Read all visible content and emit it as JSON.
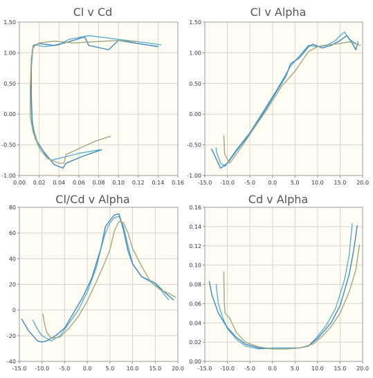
{
  "colors": {
    "background": "#fffdf3",
    "grid": "#d6d6cc",
    "series_colors": [
      "#5aaed0",
      "#3d87c2",
      "#9fa87e"
    ]
  },
  "chart_data": [
    {
      "type": "line",
      "title": "Cl v Cd",
      "xlabel": "",
      "ylabel": "",
      "xlim": [
        0.0,
        0.16
      ],
      "ylim": [
        -1.0,
        1.5
      ],
      "xticks": [
        "0.00",
        "0.02",
        "0.04",
        "0.06",
        "0.08",
        "0.10",
        "0.12",
        "0.14",
        "0.16"
      ],
      "yticks": [
        "-1.00",
        "-0.50",
        "0.00",
        "0.50",
        "1.00",
        "1.50"
      ],
      "grid": true,
      "series": [
        {
          "color": "#5aaed0",
          "points": [
            [
              0.081,
              -0.58
            ],
            [
              0.06,
              -0.64
            ],
            [
              0.045,
              -0.7
            ],
            [
              0.032,
              -0.75
            ],
            [
              0.022,
              -0.6
            ],
            [
              0.016,
              -0.4
            ],
            [
              0.013,
              -0.1
            ],
            [
              0.012,
              0.3
            ],
            [
              0.012,
              0.7
            ],
            [
              0.013,
              1.05
            ],
            [
              0.016,
              1.13
            ],
            [
              0.025,
              1.1
            ],
            [
              0.04,
              1.13
            ],
            [
              0.05,
              1.22
            ],
            [
              0.07,
              1.28
            ],
            [
              0.1,
              1.22
            ],
            [
              0.13,
              1.16
            ],
            [
              0.143,
              1.13
            ]
          ]
        },
        {
          "color": "#3d87c2",
          "points": [
            [
              0.083,
              -0.58
            ],
            [
              0.065,
              -0.68
            ],
            [
              0.047,
              -0.8
            ],
            [
              0.044,
              -0.88
            ],
            [
              0.035,
              -0.82
            ],
            [
              0.025,
              -0.62
            ],
            [
              0.018,
              -0.45
            ],
            [
              0.013,
              -0.2
            ],
            [
              0.012,
              0.2
            ],
            [
              0.012,
              0.8
            ],
            [
              0.014,
              1.12
            ],
            [
              0.02,
              1.15
            ],
            [
              0.035,
              1.12
            ],
            [
              0.05,
              1.18
            ],
            [
              0.066,
              1.26
            ],
            [
              0.07,
              1.12
            ],
            [
              0.09,
              1.05
            ],
            [
              0.1,
              1.2
            ],
            [
              0.14,
              1.1
            ]
          ]
        },
        {
          "color": "#9fa87e",
          "points": [
            [
              0.092,
              -0.36
            ],
            [
              0.075,
              -0.45
            ],
            [
              0.047,
              -0.66
            ],
            [
              0.045,
              -0.8
            ],
            [
              0.04,
              -0.8
            ],
            [
              0.028,
              -0.72
            ],
            [
              0.02,
              -0.55
            ],
            [
              0.014,
              -0.3
            ],
            [
              0.011,
              -0.05
            ],
            [
              0.011,
              0.4
            ],
            [
              0.012,
              0.9
            ],
            [
              0.014,
              1.1
            ],
            [
              0.02,
              1.16
            ],
            [
              0.035,
              1.19
            ],
            [
              0.055,
              1.16
            ],
            [
              0.075,
              1.18
            ],
            [
              0.1,
              1.2
            ],
            [
              0.12,
              1.18
            ]
          ]
        }
      ]
    },
    {
      "type": "line",
      "title": "Cl v Alpha",
      "xlabel": "",
      "ylabel": "",
      "xlim": [
        -15.0,
        20.0
      ],
      "ylim": [
        -1.0,
        1.5
      ],
      "xticks": [
        "-15.0",
        "-10.0",
        "-5.0",
        "0.0",
        "5.0",
        "10.0",
        "15.0",
        "20.0"
      ],
      "yticks": [
        "-1.00",
        "-0.50",
        "0.00",
        "0.50",
        "1.00",
        "1.50"
      ],
      "grid": true,
      "series": [
        {
          "color": "#5aaed0",
          "points": [
            [
              -12.5,
              -0.55
            ],
            [
              -12.4,
              -0.62
            ],
            [
              -11.5,
              -0.8
            ],
            [
              -10.5,
              -0.85
            ],
            [
              -8,
              -0.58
            ],
            [
              -5,
              -0.3
            ],
            [
              -2,
              0.05
            ],
            [
              1,
              0.4
            ],
            [
              4,
              0.78
            ],
            [
              6,
              0.95
            ],
            [
              8,
              1.12
            ],
            [
              10,
              1.1
            ],
            [
              12,
              1.12
            ],
            [
              14,
              1.2
            ],
            [
              15,
              1.28
            ],
            [
              16,
              1.34
            ],
            [
              17,
              1.22
            ],
            [
              18.5,
              1.15
            ]
          ]
        },
        {
          "color": "#3d87c2",
          "points": [
            [
              -13.5,
              -0.57
            ],
            [
              -11.5,
              -0.88
            ],
            [
              -10,
              -0.8
            ],
            [
              -8,
              -0.6
            ],
            [
              -5,
              -0.32
            ],
            [
              -2,
              0.02
            ],
            [
              1,
              0.38
            ],
            [
              3,
              0.62
            ],
            [
              4,
              0.82
            ],
            [
              6,
              0.92
            ],
            [
              8,
              1.1
            ],
            [
              9,
              1.14
            ],
            [
              11,
              1.08
            ],
            [
              13,
              1.12
            ],
            [
              15,
              1.2
            ],
            [
              16.5,
              1.28
            ],
            [
              17.5,
              1.18
            ],
            [
              18.5,
              1.05
            ],
            [
              19,
              1.18
            ]
          ]
        },
        {
          "color": "#9fa87e",
          "points": [
            [
              -10.8,
              -0.35
            ],
            [
              -10.6,
              -0.65
            ],
            [
              -9.5,
              -0.8
            ],
            [
              -7,
              -0.55
            ],
            [
              -4,
              -0.22
            ],
            [
              -1,
              0.1
            ],
            [
              2,
              0.45
            ],
            [
              5,
              0.7
            ],
            [
              8,
              1.02
            ],
            [
              10,
              1.1
            ],
            [
              12,
              1.13
            ],
            [
              15,
              1.15
            ],
            [
              17,
              1.18
            ],
            [
              19.5,
              1.12
            ]
          ]
        }
      ]
    },
    {
      "type": "line",
      "title": "Cl/Cd v Alpha",
      "xlabel": "",
      "ylabel": "",
      "xlim": [
        -15.0,
        20.0
      ],
      "ylim": [
        -40,
        80
      ],
      "xticks": [
        "-15.0",
        "-10.0",
        "-5.0",
        "0.0",
        "5.0",
        "10.0",
        "15.0",
        "20.0"
      ],
      "yticks": [
        "-40",
        "-20",
        "0",
        "20",
        "40",
        "60",
        "80"
      ],
      "grid": true,
      "series": [
        {
          "color": "#5aaed0",
          "points": [
            [
              -12,
              -8
            ],
            [
              -11,
              -15
            ],
            [
              -10,
              -20
            ],
            [
              -8,
              -24
            ],
            [
              -6,
              -20
            ],
            [
              -4,
              -10
            ],
            [
              -2,
              0
            ],
            [
              0,
              14
            ],
            [
              2,
              33
            ],
            [
              3,
              48
            ],
            [
              4,
              60
            ],
            [
              5,
              68
            ],
            [
              6,
              72
            ],
            [
              7,
              73
            ],
            [
              8,
              65
            ],
            [
              9,
              50
            ],
            [
              10,
              36
            ],
            [
              12,
              26
            ],
            [
              14,
              22
            ],
            [
              16,
              17
            ],
            [
              17,
              12
            ],
            [
              18,
              8
            ]
          ]
        },
        {
          "color": "#3d87c2",
          "points": [
            [
              -14.5,
              -7
            ],
            [
              -13,
              -16
            ],
            [
              -11,
              -24
            ],
            [
              -10,
              -25
            ],
            [
              -9,
              -24
            ],
            [
              -7,
              -20
            ],
            [
              -5,
              -14
            ],
            [
              -3,
              -2
            ],
            [
              -1,
              10
            ],
            [
              1,
              25
            ],
            [
              3,
              48
            ],
            [
              4,
              65
            ],
            [
              5,
              70
            ],
            [
              6,
              74
            ],
            [
              7,
              75
            ],
            [
              8,
              62
            ],
            [
              9,
              46
            ],
            [
              10,
              36
            ],
            [
              12,
              26
            ],
            [
              15,
              21
            ],
            [
              17,
              14
            ],
            [
              19,
              8
            ]
          ]
        },
        {
          "color": "#9fa87e",
          "points": [
            [
              -9.8,
              -3
            ],
            [
              -9.5,
              -10
            ],
            [
              -9,
              -17
            ],
            [
              -8,
              -22
            ],
            [
              -6,
              -21
            ],
            [
              -4,
              -14
            ],
            [
              -2,
              -5
            ],
            [
              0,
              7
            ],
            [
              2,
              22
            ],
            [
              4,
              38
            ],
            [
              5,
              47
            ],
            [
              6,
              62
            ],
            [
              7,
              69
            ],
            [
              8,
              68
            ],
            [
              9,
              60
            ],
            [
              10,
              48
            ],
            [
              12,
              34
            ],
            [
              14,
              22
            ],
            [
              16,
              16
            ],
            [
              18,
              13
            ],
            [
              19.5,
              10
            ]
          ]
        }
      ]
    },
    {
      "type": "line",
      "title": "Cd v Alpha",
      "xlabel": "",
      "ylabel": "",
      "xlim": [
        -15.0,
        20.0
      ],
      "ylim": [
        0.0,
        0.16
      ],
      "xticks": [
        "-15.0",
        "-10.0",
        "-5.0",
        "0.0",
        "5.0",
        "10.0",
        "15.0",
        "20.0"
      ],
      "yticks": [
        "0.00",
        "0.02",
        "0.04",
        "0.06",
        "0.08",
        "0.10",
        "0.12",
        "0.14",
        "0.16"
      ],
      "grid": true,
      "series": [
        {
          "color": "#5aaed0",
          "points": [
            [
              -12.5,
              0.08
            ],
            [
              -12,
              0.06
            ],
            [
              -11,
              0.045
            ],
            [
              -10,
              0.034
            ],
            [
              -8,
              0.023
            ],
            [
              -6,
              0.016
            ],
            [
              -3,
              0.013
            ],
            [
              0,
              0.014
            ],
            [
              3,
              0.014
            ],
            [
              6,
              0.014
            ],
            [
              8,
              0.016
            ],
            [
              10,
              0.026
            ],
            [
              12,
              0.038
            ],
            [
              14,
              0.055
            ],
            [
              16,
              0.085
            ],
            [
              17,
              0.11
            ],
            [
              17.7,
              0.143
            ]
          ]
        },
        {
          "color": "#3d87c2",
          "points": [
            [
              -14,
              0.083
            ],
            [
              -13.5,
              0.07
            ],
            [
              -12,
              0.05
            ],
            [
              -10,
              0.035
            ],
            [
              -8,
              0.025
            ],
            [
              -6,
              0.018
            ],
            [
              -3,
              0.014
            ],
            [
              0,
              0.013
            ],
            [
              3,
              0.013
            ],
            [
              6,
              0.014
            ],
            [
              8,
              0.016
            ],
            [
              10,
              0.024
            ],
            [
              13,
              0.04
            ],
            [
              15,
              0.058
            ],
            [
              17,
              0.09
            ],
            [
              18,
              0.115
            ],
            [
              18.8,
              0.141
            ]
          ]
        },
        {
          "color": "#9fa87e",
          "points": [
            [
              -10.8,
              0.093
            ],
            [
              -10.7,
              0.062
            ],
            [
              -10.5,
              0.05
            ],
            [
              -9.5,
              0.045
            ],
            [
              -8,
              0.03
            ],
            [
              -6,
              0.02
            ],
            [
              -3,
              0.015
            ],
            [
              0,
              0.013
            ],
            [
              3,
              0.013
            ],
            [
              6,
              0.014
            ],
            [
              9,
              0.018
            ],
            [
              11,
              0.026
            ],
            [
              13,
              0.036
            ],
            [
              15,
              0.05
            ],
            [
              17,
              0.072
            ],
            [
              18.5,
              0.095
            ],
            [
              19.3,
              0.121
            ]
          ]
        }
      ]
    }
  ]
}
